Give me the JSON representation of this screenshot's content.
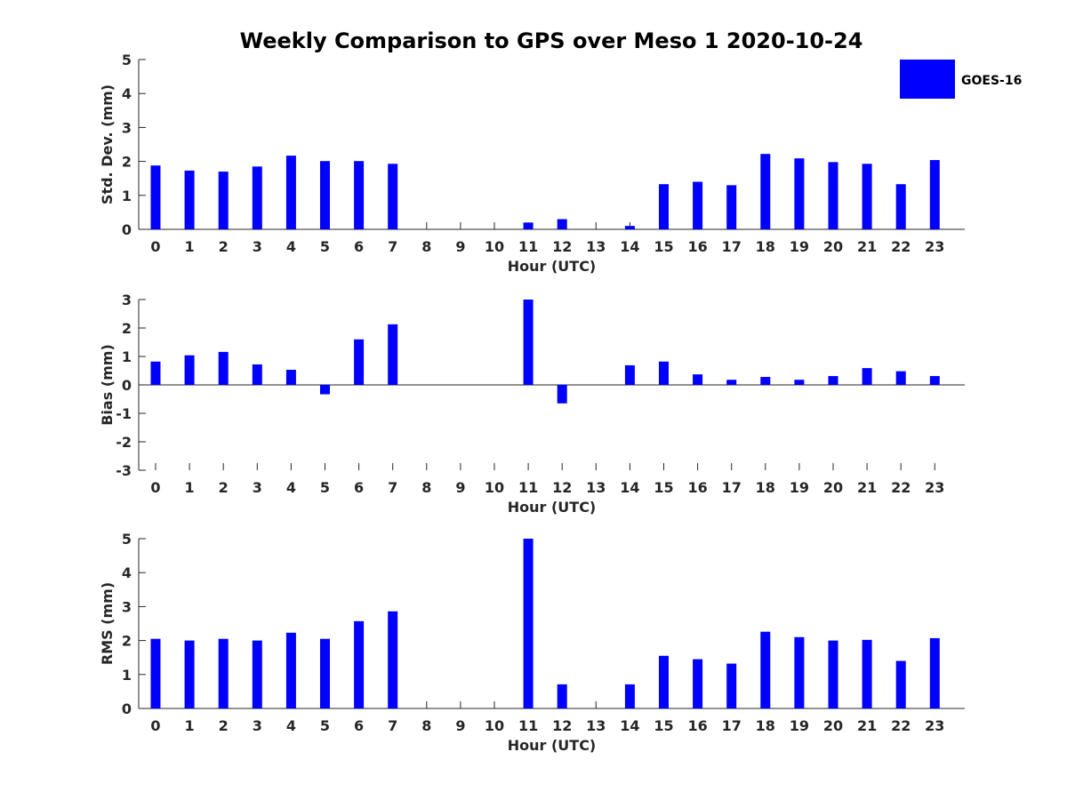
{
  "title": "Weekly Comparison to GPS over Meso 1 2020-10-24",
  "legend": {
    "label": "GOES-16",
    "color": "#0000ff",
    "position": "top-right"
  },
  "chart_data": [
    {
      "type": "bar",
      "categories": [
        "0",
        "1",
        "2",
        "3",
        "4",
        "5",
        "6",
        "7",
        "8",
        "9",
        "10",
        "11",
        "12",
        "13",
        "14",
        "15",
        "16",
        "17",
        "18",
        "19",
        "20",
        "21",
        "22",
        "23"
      ],
      "series": [
        {
          "name": "GOES-16",
          "values": [
            1.88,
            1.73,
            1.7,
            1.85,
            2.17,
            2.01,
            2.01,
            1.93,
            0,
            0,
            0,
            0.2,
            0.3,
            0,
            0.1,
            1.33,
            1.4,
            1.3,
            2.22,
            2.09,
            1.98,
            1.93,
            1.33,
            2.04
          ]
        }
      ],
      "xlabel": "Hour (UTC)",
      "ylabel": "Std. Dev. (mm)",
      "ylim": [
        0,
        5
      ],
      "yticks": [
        0,
        1,
        2,
        3,
        4,
        5
      ],
      "grid": false
    },
    {
      "type": "bar",
      "categories": [
        "0",
        "1",
        "2",
        "3",
        "4",
        "5",
        "6",
        "7",
        "8",
        "9",
        "10",
        "11",
        "12",
        "13",
        "14",
        "15",
        "16",
        "17",
        "18",
        "19",
        "20",
        "21",
        "22",
        "23"
      ],
      "series": [
        {
          "name": "GOES-16",
          "values": [
            0.82,
            1.04,
            1.16,
            0.72,
            0.53,
            -0.33,
            1.6,
            2.13,
            0,
            0,
            0,
            3.0,
            -0.65,
            0,
            0.69,
            0.82,
            0.37,
            0.18,
            0.28,
            0.18,
            0.31,
            0.59,
            0.48,
            0.31
          ]
        }
      ],
      "xlabel": "Hour (UTC)",
      "ylabel": "Bias (mm)",
      "ylim": [
        -3,
        3
      ],
      "yticks": [
        -3,
        -2,
        -1,
        0,
        1,
        2,
        3
      ],
      "grid": false
    },
    {
      "type": "bar",
      "categories": [
        "0",
        "1",
        "2",
        "3",
        "4",
        "5",
        "6",
        "7",
        "8",
        "9",
        "10",
        "11",
        "12",
        "13",
        "14",
        "15",
        "16",
        "17",
        "18",
        "19",
        "20",
        "21",
        "22",
        "23"
      ],
      "series": [
        {
          "name": "GOES-16",
          "values": [
            2.05,
            2.0,
            2.05,
            2.0,
            2.23,
            2.05,
            2.57,
            2.86,
            0,
            0,
            0,
            5.0,
            0.71,
            0,
            0.71,
            1.55,
            1.45,
            1.32,
            2.26,
            2.1,
            2.0,
            2.02,
            1.4,
            2.07
          ]
        }
      ],
      "xlabel": "Hour (UTC)",
      "ylabel": "RMS (mm)",
      "ylim": [
        0,
        5
      ],
      "yticks": [
        0,
        1,
        2,
        3,
        4,
        5
      ],
      "grid": false
    }
  ]
}
